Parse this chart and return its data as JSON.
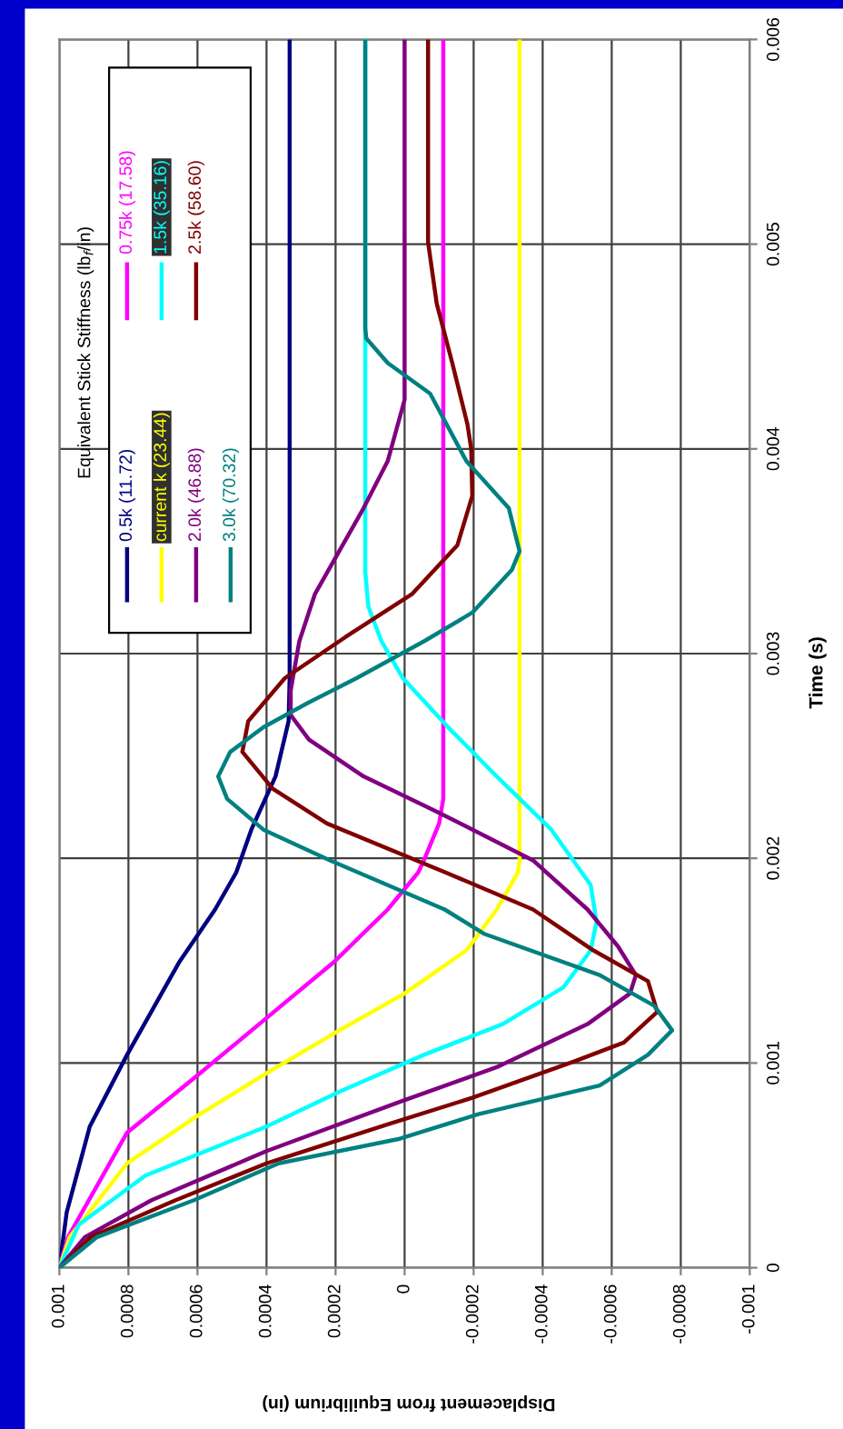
{
  "chart_data": {
    "type": "line",
    "xlabel": "Displacement from Equilibrium (in)",
    "ylabel": "Time (s)",
    "legend_title": "Equivalent Stick Stiffness (lb$_{f}$/in)",
    "xlim": [
      0.001,
      -0.001
    ],
    "xticks": [
      0.001,
      0.0008,
      0.0006,
      0.0004,
      0.0002,
      0,
      -0.0002,
      -0.0004,
      -0.0006,
      -0.0008,
      -0.001
    ],
    "ylim": [
      0,
      0.006
    ],
    "yticks": [
      0,
      0.001,
      0.002,
      0.003,
      0.004,
      0.005,
      0.006
    ],
    "grid": true,
    "legend": "top left",
    "marker": "none",
    "line_style": "solid",
    "series": [
      {
        "name": "0.5k (11.72)",
        "color": "#000080",
        "values": [
          0,
          0.00027,
          0.00069,
          0.00104,
          0.00149,
          0.00175,
          0.00193,
          0.00214,
          0.0024,
          0.00267,
          0.00288,
          0.006
        ],
        "x": [
          0.001,
          0.000979,
          0.000912,
          0.000804,
          0.000654,
          0.000549,
          0.000488,
          0.000444,
          0.000374,
          0.000336,
          0.000333,
          0.000333
        ]
      },
      {
        "name": "0.75k (17.58)",
        "color": "#ff00ff",
        "values": [
          0,
          0.00015,
          0.00066,
          0.00095,
          0.00122,
          0.00149,
          0.00175,
          0.00193,
          0.00199,
          0.00217,
          0.00229,
          0.006
        ],
        "x": [
          0.001,
          0.000975,
          0.000804,
          0.000593,
          0.0004,
          0.000207,
          4.9e-05,
          -3.9e-05,
          -5.6e-05,
          -0.0001,
          -0.000112,
          -0.000112
        ]
      },
      {
        "name": "current k (23.44)",
        "color": "#ffff00",
        "values": [
          0,
          0.00015,
          0.00051,
          0.00075,
          0.00095,
          0.00116,
          0.00134,
          0.00155,
          0.00175,
          0.00193,
          0.00199,
          0.006
        ],
        "x": [
          0.001,
          0.00097,
          0.000804,
          0.000593,
          0.0004,
          0.000189,
          0,
          -0.000179,
          -0.000267,
          -0.000328,
          -0.000333,
          -0.000333
        ]
      },
      {
        "name": "1.5k (35.16)",
        "color": "#00ffff",
        "values": [
          0,
          0.00021,
          0.00045,
          0.00069,
          0.00086,
          0.00104,
          0.00119,
          0.00137,
          0.00155,
          0.00169,
          0.00187,
          0.00214,
          0.0024,
          0.00264,
          0.00288,
          0.00306,
          0.00323,
          0.0034,
          0.006
        ],
        "x": [
          0.001,
          0.000944,
          0.000751,
          0.0004,
          0.000189,
          -5.6e-05,
          -0.000284,
          -0.00046,
          -0.000539,
          -0.000556,
          -0.000539,
          -0.000425,
          -0.000267,
          -0.000126,
          5e-06,
          6.7e-05,
          0.000105,
          0.000114,
          0.000114
        ]
      },
      {
        "name": "2.0k (46.88)",
        "color": "#800080",
        "values": [
          0,
          0.00015,
          0.00033,
          0.00057,
          0.00081,
          0.00098,
          0.00119,
          0.00134,
          0.00143,
          0.00157,
          0.00175,
          0.00199,
          0.00223,
          0.0024,
          0.00258,
          0.0027,
          0.00282,
          0.00306,
          0.00329,
          0.00371,
          0.00394,
          0.00424,
          0.006
        ],
        "x": [
          0.001,
          0.000926,
          0.000733,
          0.0004,
          1.4e-05,
          -0.000267,
          -0.00053,
          -0.000653,
          -0.00067,
          -0.000618,
          -0.00053,
          -0.000372,
          -9.1e-05,
          0.000119,
          0.000277,
          0.00033,
          0.00033,
          0.000305,
          0.00026,
          0.000119,
          4.9e-05,
          0,
          0
        ]
      },
      {
        "name": "2.5k (58.60)",
        "color": "#800000",
        "values": [
          0,
          0.00015,
          0.00033,
          0.00051,
          0.0007,
          0.00083,
          0.00101,
          0.0011,
          0.00125,
          0.0014,
          0.00155,
          0.00175,
          0.00193,
          0.00217,
          0.00234,
          0.00252,
          0.00267,
          0.00288,
          0.00308,
          0.00329,
          0.00353,
          0.00377,
          0.004,
          0.00412,
          0.00442,
          0.00471,
          0.00501,
          0.006
        ],
        "x": [
          0.001,
          0.000909,
          0.000663,
          0.0004,
          4.9e-05,
          -0.000196,
          -0.000495,
          -0.000635,
          -0.000732,
          -0.000705,
          -0.000547,
          -0.000372,
          -0.00012,
          0.000225,
          0.000382,
          0.00047,
          0.000453,
          0.000347,
          0.000172,
          -2.1e-05,
          -0.000153,
          -0.000196,
          -0.000193,
          -0.000182,
          -0.000138,
          -9.3e-05,
          -6.8e-05,
          -6.8e-05
        ]
      },
      {
        "name": "3.0k (70.32)",
        "color": "#008080",
        "values": [
          0,
          0.00015,
          0.00033,
          0.00051,
          0.00063,
          0.00075,
          0.00089,
          0.00104,
          0.00116,
          0.00128,
          0.00143,
          0.00163,
          0.00175,
          0.00199,
          0.00214,
          0.00229,
          0.0024,
          0.00252,
          0.00264,
          0.00276,
          0.00288,
          0.00306,
          0.0032,
          0.00341,
          0.0035,
          0.00371,
          0.00394,
          0.00427,
          0.00442,
          0.00454,
          0.00459,
          0.006
        ],
        "x": [
          0.001,
          0.000891,
          0.00061,
          0.000365,
          1.4e-05,
          -0.000214,
          -0.000565,
          -0.000705,
          -0.000775,
          -0.000723,
          -0.000565,
          -0.000232,
          -0.000116,
          0.000216,
          0.000409,
          0.000514,
          0.00054,
          0.000505,
          0.000409,
          0.000279,
          0.000139,
          -5.6e-05,
          -0.000196,
          -0.000311,
          -0.000333,
          -0.000302,
          -0.000179,
          -7.4e-05,
          4.9e-05,
          0.000111,
          0.000114,
          0.000114
        ]
      }
    ]
  }
}
